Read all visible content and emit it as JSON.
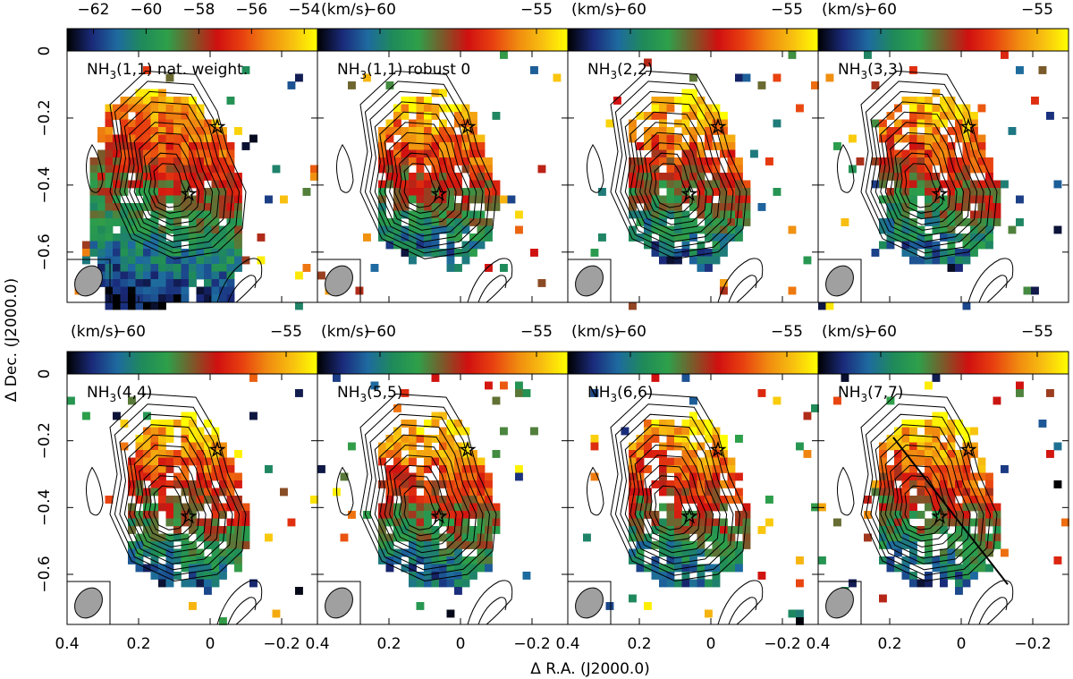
{
  "figure": {
    "xlabel": "Δ R.A. (J2000.0)",
    "ylabel": "Δ Dec. (J2000.0)",
    "colorbar_unit": "(km/s)",
    "colormap": [
      "#000000",
      "#1a2a7a",
      "#1e6aa0",
      "#1f8a5a",
      "#2ea04a",
      "#7a5a2a",
      "#d01010",
      "#e84010",
      "#f08a10",
      "#f8c010",
      "#ffff00"
    ],
    "contour_color": "#000000",
    "grid": false
  },
  "chart_data": [
    {
      "type": "heatmap",
      "panel_label": "NH3(1,1) nat. weight.",
      "row": 0,
      "col": 0,
      "colorbar": {
        "range": [
          -63,
          -53.5
        ],
        "ticks": [
          -62,
          -60,
          -58,
          -56,
          -54
        ],
        "tick_labels": [
          "−62",
          "−60",
          "−58",
          "−56",
          "−54"
        ]
      },
      "xlim": [
        0.4,
        -0.3
      ],
      "ylim": [
        -0.75,
        0.0
      ],
      "xticks": [
        0.4,
        0.2,
        0,
        -0.2
      ],
      "yticks": [
        0,
        -0.2,
        -0.4,
        -0.6
      ],
      "ytick_labels": [
        "0",
        "−0.2",
        "−0.4",
        "−0.6"
      ],
      "xtick_labels": [],
      "stars": [
        [
          -0.02,
          -0.23
        ],
        [
          0.06,
          -0.43
        ]
      ]
    },
    {
      "type": "heatmap",
      "panel_label": "NH3(1,1) robust 0",
      "row": 0,
      "col": 1,
      "colorbar": {
        "range": [
          -62,
          -54
        ],
        "ticks": [
          -60,
          -55
        ],
        "tick_labels": [
          "−60",
          "−55"
        ]
      },
      "xlim": [
        0.4,
        -0.3
      ],
      "ylim": [
        -0.75,
        0.0
      ],
      "xticks": [
        0.4,
        0.2,
        0,
        -0.2
      ],
      "yticks": [
        0,
        -0.2,
        -0.4,
        -0.6
      ],
      "xtick_labels": [],
      "ytick_labels": [],
      "stars": [
        [
          -0.02,
          -0.23
        ],
        [
          0.06,
          -0.43
        ]
      ]
    },
    {
      "type": "heatmap",
      "panel_label": "NH3(2,2)",
      "row": 0,
      "col": 2,
      "colorbar": {
        "range": [
          -62,
          -54
        ],
        "ticks": [
          -60,
          -55
        ],
        "tick_labels": [
          "−60",
          "−55"
        ]
      },
      "xlim": [
        0.4,
        -0.3
      ],
      "ylim": [
        -0.75,
        0.0
      ],
      "xticks": [
        0.4,
        0.2,
        0,
        -0.2
      ],
      "yticks": [
        0,
        -0.2,
        -0.4,
        -0.6
      ],
      "xtick_labels": [],
      "ytick_labels": [],
      "stars": [
        [
          -0.02,
          -0.23
        ],
        [
          0.06,
          -0.43
        ]
      ]
    },
    {
      "type": "heatmap",
      "panel_label": "NH3(3,3)",
      "row": 0,
      "col": 3,
      "colorbar": {
        "range": [
          -62,
          -54
        ],
        "ticks": [
          -60,
          -55
        ],
        "tick_labels": [
          "−60",
          "−55"
        ]
      },
      "xlim": [
        0.4,
        -0.3
      ],
      "ylim": [
        -0.75,
        0.0
      ],
      "xticks": [
        0.4,
        0.2,
        0,
        -0.2
      ],
      "yticks": [
        0,
        -0.2,
        -0.4,
        -0.6
      ],
      "xtick_labels": [],
      "ytick_labels": [],
      "stars": [
        [
          -0.02,
          -0.23
        ],
        [
          0.06,
          -0.43
        ]
      ]
    },
    {
      "type": "heatmap",
      "panel_label": "NH3(4,4)",
      "row": 1,
      "col": 0,
      "colorbar": {
        "range": [
          -62,
          -54
        ],
        "ticks": [
          -60,
          -55
        ],
        "tick_labels": [
          "−60",
          "−55"
        ]
      },
      "xlim": [
        0.4,
        -0.3
      ],
      "ylim": [
        -0.75,
        0.0
      ],
      "xticks": [
        0.4,
        0.2,
        0,
        -0.2
      ],
      "yticks": [
        0,
        -0.2,
        -0.4,
        -0.6
      ],
      "ytick_labels": [
        "0",
        "−0.2",
        "−0.4",
        "−0.6"
      ],
      "xtick_labels": [
        "0.4",
        "0.2",
        "0",
        "−0.2"
      ],
      "stars": [
        [
          -0.02,
          -0.23
        ],
        [
          0.06,
          -0.43
        ]
      ]
    },
    {
      "type": "heatmap",
      "panel_label": "NH3(5,5)",
      "row": 1,
      "col": 1,
      "colorbar": {
        "range": [
          -62,
          -54
        ],
        "ticks": [
          -60,
          -55
        ],
        "tick_labels": [
          "−60",
          "−55"
        ]
      },
      "xlim": [
        0.4,
        -0.3
      ],
      "ylim": [
        -0.75,
        0.0
      ],
      "xticks": [
        0.4,
        0.2,
        0,
        -0.2
      ],
      "yticks": [
        0,
        -0.2,
        -0.4,
        -0.6
      ],
      "ytick_labels": [],
      "xtick_labels": [
        "0.4",
        "0.2",
        "0",
        "−0.2"
      ],
      "stars": [
        [
          -0.02,
          -0.23
        ],
        [
          0.06,
          -0.43
        ]
      ]
    },
    {
      "type": "heatmap",
      "panel_label": "NH3(6,6)",
      "row": 1,
      "col": 2,
      "colorbar": {
        "range": [
          -62,
          -54
        ],
        "ticks": [
          -60,
          -55
        ],
        "tick_labels": [
          "−60",
          "−55"
        ]
      },
      "xlim": [
        0.4,
        -0.3
      ],
      "ylim": [
        -0.75,
        0.0
      ],
      "xticks": [
        0.4,
        0.2,
        0,
        -0.2
      ],
      "yticks": [
        0,
        -0.2,
        -0.4,
        -0.6
      ],
      "ytick_labels": [],
      "xtick_labels": [
        "0.4",
        "0.2",
        "0",
        "−0.2"
      ],
      "stars": [
        [
          -0.02,
          -0.23
        ],
        [
          0.06,
          -0.43
        ]
      ]
    },
    {
      "type": "heatmap",
      "panel_label": "NH3(7,7)",
      "row": 1,
      "col": 3,
      "colorbar": {
        "range": [
          -62,
          -54
        ],
        "ticks": [
          -60,
          -55
        ],
        "tick_labels": [
          "−60",
          "−55"
        ]
      },
      "xlim": [
        0.4,
        -0.3
      ],
      "ylim": [
        -0.75,
        0.0
      ],
      "xticks": [
        0.4,
        0.2,
        0,
        -0.2
      ],
      "yticks": [
        0,
        -0.2,
        -0.4,
        -0.6
      ],
      "ytick_labels": [],
      "xtick_labels": [
        "0.4",
        "0.2",
        "0",
        "−0.2"
      ],
      "stars": [
        [
          -0.02,
          -0.23
        ],
        [
          0.06,
          -0.43
        ]
      ],
      "cut_line": [
        [
          0.19,
          -0.19
        ],
        [
          -0.13,
          -0.63
        ]
      ]
    }
  ]
}
